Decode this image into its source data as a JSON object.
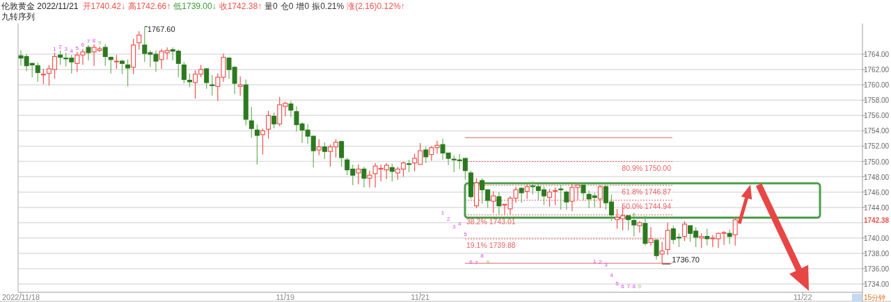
{
  "chart_data": {
    "type": "candlestick",
    "title": "伦敦黄金 2022/11/21",
    "subtitle": "九转序列",
    "categories": [
      "2022/11/18",
      null,
      null,
      null,
      null,
      null,
      null,
      null,
      null,
      null,
      null,
      null,
      null,
      null,
      null,
      null,
      null,
      null,
      null,
      null,
      null,
      null,
      null,
      null,
      null,
      null,
      null,
      null,
      null,
      null,
      null,
      null,
      null,
      null,
      null,
      null,
      null,
      null,
      null,
      null,
      null,
      null,
      null,
      null,
      null,
      null,
      null,
      "11/19",
      null,
      null,
      null,
      null,
      null,
      null,
      null,
      null,
      null,
      null,
      null,
      null,
      null,
      null,
      null,
      null,
      null,
      null,
      null,
      null,
      null,
      null,
      null,
      "11/21",
      null,
      null,
      null,
      null,
      null,
      null,
      null,
      null,
      null,
      null,
      null,
      null,
      null,
      null,
      null,
      null,
      null,
      null,
      null,
      null,
      null,
      null,
      null,
      null,
      null,
      null,
      null,
      null,
      null,
      null,
      null,
      null,
      null,
      null,
      null,
      null,
      null,
      null,
      null,
      null,
      null,
      null,
      null,
      null,
      null,
      null,
      null,
      null,
      null,
      null,
      null,
      null,
      null,
      null,
      null,
      null,
      null,
      null,
      null,
      null,
      null,
      null,
      null,
      null,
      null,
      null,
      null,
      "11/22",
      null,
      null,
      null,
      null,
      null,
      null,
      null,
      null,
      null,
      null
    ],
    "ohlc": [
      [
        1763.8,
        1764.5,
        1762.5,
        1763.5
      ],
      [
        1763.7,
        1764.0,
        1761.8,
        1762.5
      ],
      [
        1762.8,
        1762.9,
        1761.0,
        1762.6
      ],
      [
        1762.5,
        1762.9,
        1760.4,
        1761.6
      ],
      [
        1761.3,
        1762.1,
        1760.1,
        1761.4
      ],
      [
        1761.5,
        1762.6,
        1759.9,
        1762.1
      ],
      [
        1762.0,
        1764.2,
        1760.8,
        1763.7
      ],
      [
        1763.9,
        1764.5,
        1762.6,
        1763.6
      ],
      [
        1763.5,
        1764.2,
        1762.4,
        1763.4
      ],
      [
        1763.5,
        1763.9,
        1761.5,
        1763.0
      ],
      [
        1762.8,
        1764.3,
        1761.7,
        1763.9
      ],
      [
        1763.9,
        1764.7,
        1762.6,
        1764.3
      ],
      [
        1764.9,
        1765.2,
        1763.2,
        1764.2
      ],
      [
        1764.3,
        1765.3,
        1762.5,
        1764.9
      ],
      [
        1764.5,
        1765.0,
        1764.3,
        1764.7
      ],
      [
        1764.9,
        1765.3,
        1762.5,
        1763.7
      ],
      [
        1763.6,
        1763.7,
        1761.5,
        1763.3
      ],
      [
        1763.0,
        1763.9,
        1762.1,
        1763.1
      ],
      [
        1763.1,
        1763.3,
        1761.4,
        1762.8
      ],
      [
        1762.6,
        1763.3,
        1759.8,
        1762.2
      ],
      [
        1762.3,
        1766.0,
        1761.4,
        1765.2
      ],
      [
        1765.5,
        1767.0,
        1764.6,
        1766.5
      ],
      [
        1765.2,
        1767.6,
        1763.0,
        1764.1
      ],
      [
        1764.2,
        1764.5,
        1762.3,
        1764.0
      ],
      [
        1764.0,
        1764.5,
        1761.7,
        1763.1
      ],
      [
        1763.3,
        1764.7,
        1762.1,
        1764.4
      ],
      [
        1764.2,
        1764.9,
        1763.3,
        1764.5
      ],
      [
        1764.6,
        1764.9,
        1763.2,
        1764.4
      ],
      [
        1764.4,
        1764.6,
        1761.0,
        1762.8
      ],
      [
        1762.6,
        1763.0,
        1760.2,
        1760.7
      ],
      [
        1760.6,
        1761.5,
        1759.7,
        1760.4
      ],
      [
        1760.3,
        1761.9,
        1758.2,
        1761.4
      ],
      [
        1761.4,
        1762.6,
        1761.0,
        1762.0
      ],
      [
        1762.1,
        1762.2,
        1759.5,
        1760.3
      ],
      [
        1760.0,
        1761.3,
        1758.6,
        1759.9
      ],
      [
        1759.8,
        1761.5,
        1757.9,
        1761.0
      ],
      [
        1761.0,
        1764.1,
        1760.4,
        1763.6
      ],
      [
        1763.5,
        1763.6,
        1760.8,
        1762.0
      ],
      [
        1762.3,
        1762.4,
        1758.8,
        1760.2
      ],
      [
        1759.8,
        1761.1,
        1758.6,
        1760.0
      ],
      [
        1760.0,
        1760.7,
        1754.7,
        1755.5
      ],
      [
        1755.3,
        1757.1,
        1753.1,
        1754.3
      ],
      [
        1754.1,
        1754.8,
        1749.6,
        1753.4
      ],
      [
        1753.5,
        1754.3,
        1750.9,
        1754.0
      ],
      [
        1754.2,
        1756.6,
        1753.0,
        1756.0
      ],
      [
        1755.9,
        1756.4,
        1754.3,
        1754.9
      ],
      [
        1754.9,
        1758.4,
        1754.6,
        1757.4
      ],
      [
        1757.2,
        1757.8,
        1755.9,
        1757.6
      ],
      [
        1757.5,
        1757.9,
        1755.8,
        1756.7
      ],
      [
        1756.5,
        1757.2,
        1753.9,
        1754.8
      ],
      [
        1754.9,
        1755.1,
        1752.4,
        1754.1
      ],
      [
        1754.1,
        1754.9,
        1752.3,
        1753.3
      ],
      [
        1753.3,
        1753.3,
        1749.2,
        1751.4
      ],
      [
        1751.5,
        1752.9,
        1750.8,
        1751.9
      ],
      [
        1751.9,
        1752.5,
        1750.3,
        1751.3
      ],
      [
        1751.3,
        1752.2,
        1749.3,
        1751.9
      ],
      [
        1751.9,
        1752.9,
        1750.5,
        1752.5
      ],
      [
        1752.6,
        1752.7,
        1749.3,
        1750.5
      ],
      [
        1750.2,
        1750.5,
        1748.2,
        1748.9
      ],
      [
        1749.0,
        1749.6,
        1746.9,
        1748.2
      ],
      [
        1748.5,
        1749.6,
        1747.0,
        1749.0
      ],
      [
        1749.0,
        1749.3,
        1746.6,
        1747.8
      ],
      [
        1747.8,
        1748.8,
        1746.6,
        1748.2
      ],
      [
        1748.4,
        1749.8,
        1746.6,
        1749.4
      ],
      [
        1749.0,
        1749.6,
        1747.4,
        1749.1
      ],
      [
        1748.9,
        1749.8,
        1747.7,
        1749.5
      ],
      [
        1749.2,
        1749.7,
        1747.4,
        1748.7
      ],
      [
        1748.5,
        1749.3,
        1747.6,
        1749.0
      ],
      [
        1749.0,
        1750.0,
        1748.0,
        1749.8
      ],
      [
        1749.7,
        1750.2,
        1748.6,
        1749.6
      ],
      [
        1749.8,
        1751.0,
        1748.7,
        1750.4
      ],
      [
        1749.6,
        1752.4,
        1749.6,
        1751.4
      ],
      [
        1751.5,
        1751.9,
        1749.8,
        1750.6
      ],
      [
        1750.9,
        1752.0,
        1750.1,
        1751.8
      ],
      [
        1751.8,
        1752.7,
        1751.0,
        1752.1
      ],
      [
        1752.2,
        1753.0,
        1750.2,
        1751.1
      ],
      [
        1751.1,
        1751.1,
        1749.5,
        1750.4
      ],
      [
        1750.3,
        1750.8,
        1748.6,
        1750.2
      ],
      [
        1750.2,
        1751.0,
        1749.0,
        1750.1
      ],
      [
        1750.4,
        1750.4,
        1747.6,
        1748.8
      ],
      [
        1748.5,
        1748.8,
        1745.1,
        1745.4
      ],
      [
        1744.2,
        1747.8,
        1743.9,
        1747.2
      ],
      [
        1747.5,
        1747.8,
        1744.5,
        1746.3
      ],
      [
        1746.3,
        1746.3,
        1743.9,
        1744.9
      ],
      [
        1744.8,
        1746.1,
        1743.3,
        1745.5
      ],
      [
        1745.4,
        1746.0,
        1743.1,
        1744.2
      ],
      [
        1744.3,
        1744.4,
        1743.1,
        1744.4
      ],
      [
        1743.8,
        1745.5,
        1743.1,
        1745.2
      ],
      [
        1745.2,
        1746.7,
        1744.6,
        1746.3
      ],
      [
        1746.5,
        1746.6,
        1744.6,
        1745.9
      ],
      [
        1746.1,
        1747.0,
        1745.1,
        1746.7
      ],
      [
        1746.8,
        1747.4,
        1745.7,
        1746.7
      ],
      [
        1746.7,
        1747.0,
        1744.9,
        1746.2
      ],
      [
        1746.3,
        1746.7,
        1744.3,
        1745.5
      ],
      [
        1745.3,
        1746.4,
        1744.1,
        1746.0
      ],
      [
        1746.1,
        1746.6,
        1744.3,
        1746.2
      ],
      [
        1746.4,
        1746.9,
        1743.7,
        1746.3
      ],
      [
        1746.0,
        1746.2,
        1743.7,
        1744.7
      ],
      [
        1744.8,
        1747.0,
        1743.5,
        1746.6
      ],
      [
        1746.6,
        1746.9,
        1745.0,
        1746.9
      ],
      [
        1746.9,
        1746.9,
        1744.9,
        1745.9
      ],
      [
        1745.7,
        1746.2,
        1743.9,
        1745.1
      ],
      [
        1745.5,
        1745.9,
        1744.0,
        1745.3
      ],
      [
        1745.1,
        1746.9,
        1743.9,
        1746.7
      ],
      [
        1746.7,
        1746.9,
        1743.7,
        1744.6
      ],
      [
        1744.7,
        1745.7,
        1742.2,
        1743.0
      ],
      [
        1742.4,
        1743.8,
        1741.2,
        1742.7
      ],
      [
        1742.5,
        1744.1,
        1741.0,
        1742.9
      ],
      [
        1742.9,
        1742.9,
        1741.0,
        1742.4
      ],
      [
        1742.3,
        1743.3,
        1740.2,
        1741.7
      ],
      [
        1741.6,
        1742.2,
        1740.7,
        1742.0
      ],
      [
        1741.9,
        1742.9,
        1739.0,
        1739.3
      ],
      [
        1739.4,
        1741.4,
        1739.0,
        1739.9
      ],
      [
        1739.7,
        1739.9,
        1737.2,
        1737.7
      ],
      [
        1737.9,
        1739.5,
        1736.7,
        1738.3
      ],
      [
        1738.5,
        1742.0,
        1737.8,
        1741.0
      ],
      [
        1741.2,
        1741.6,
        1739.2,
        1739.8
      ],
      [
        1740.1,
        1740.6,
        1738.8,
        1740.0
      ],
      [
        1740.2,
        1742.2,
        1739.6,
        1741.8
      ],
      [
        1741.6,
        1741.7,
        1739.5,
        1740.6
      ],
      [
        1740.9,
        1741.4,
        1738.8,
        1740.1
      ],
      [
        1740.0,
        1740.6,
        1738.7,
        1740.2
      ],
      [
        1740.2,
        1741.2,
        1739.0,
        1739.9
      ],
      [
        1739.9,
        1740.4,
        1738.8,
        1740.0
      ],
      [
        1739.9,
        1740.7,
        1738.7,
        1740.6
      ],
      [
        1740.6,
        1740.9,
        1739.1,
        1740.7
      ],
      [
        1740.6,
        1741.1,
        1739.2,
        1740.2
      ],
      [
        1740.42,
        1742.66,
        1739.0,
        1742.38
      ],
      null,
      null,
      null,
      null,
      null,
      null,
      null,
      null,
      null,
      null,
      null,
      null,
      null,
      null,
      null,
      null,
      null,
      null,
      null,
      null,
      null,
      null
    ],
    "ylim": [
      1733.0,
      1768.0
    ],
    "yticks": [
      {
        "value": 1734,
        "label": "1734.00"
      },
      {
        "value": 1736,
        "label": "1736.00"
      },
      {
        "value": 1738,
        "label": "1738.00"
      },
      {
        "value": 1740,
        "label": "1740.00"
      },
      {
        "value": 1742,
        "label": null
      },
      {
        "value": 1744,
        "label": "1744.00"
      },
      {
        "value": 1746,
        "label": "1746.00"
      },
      {
        "value": 1748,
        "label": "1748.00"
      },
      {
        "value": 1750,
        "label": "1750.00"
      },
      {
        "value": 1752,
        "label": "1752.00"
      },
      {
        "value": 1754,
        "label": "1754.00"
      },
      {
        "value": 1756,
        "label": "1756.00"
      },
      {
        "value": 1758,
        "label": "1758.00"
      },
      {
        "value": 1760,
        "label": "1760.00"
      },
      {
        "value": 1762,
        "label": "1762.00"
      },
      {
        "value": 1764,
        "label": "1764.00"
      }
    ],
    "grid": "y",
    "ref_lines": [
      {
        "axis": "y",
        "value": 1753.1,
        "label": null,
        "color": "#f06060",
        "line_style": "solid"
      },
      {
        "axis": "y",
        "value": 1750.0,
        "label": "80.9% 1750.00",
        "color": "#f06060",
        "line_style": "dotted"
      },
      {
        "axis": "y",
        "value": 1746.87,
        "label": "61.8% 1746.87",
        "color": "#f06060",
        "line_style": "dotted"
      },
      {
        "axis": "y",
        "value": 1744.94,
        "label": "50.0% 1744.94",
        "color": "#f06060",
        "line_style": "dotted"
      },
      {
        "axis": "y",
        "value": 1743.01,
        "label": "38.2% 1743.01",
        "color": "#f06060",
        "line_style": "dotted"
      },
      {
        "axis": "y",
        "value": 1739.88,
        "label": "19.1% 1739.88",
        "color": "#f06060",
        "line_style": "dotted"
      },
      {
        "axis": "y",
        "value": 1736.7,
        "label": null,
        "color": "#f06060",
        "line_style": "solid"
      }
    ],
    "annotations": [
      "开1740.42↓",
      "高1742.66↑",
      "低1739.00↓",
      "收1742.38↑",
      "量0",
      "仓0",
      "增0",
      "振0.21%",
      "涨(2.16)0.12%↑",
      "15分钟",
      "1",
      "2",
      "3",
      "4",
      "5",
      "6",
      "7",
      "8",
      "9",
      "1",
      "2",
      "3",
      "4",
      "5",
      "6",
      "7",
      "8",
      "9",
      "1",
      "2",
      "3",
      "4",
      "5",
      "6",
      "7",
      "8",
      "9",
      "1767.60",
      "1742.38",
      "1736.70"
    ]
  }
}
